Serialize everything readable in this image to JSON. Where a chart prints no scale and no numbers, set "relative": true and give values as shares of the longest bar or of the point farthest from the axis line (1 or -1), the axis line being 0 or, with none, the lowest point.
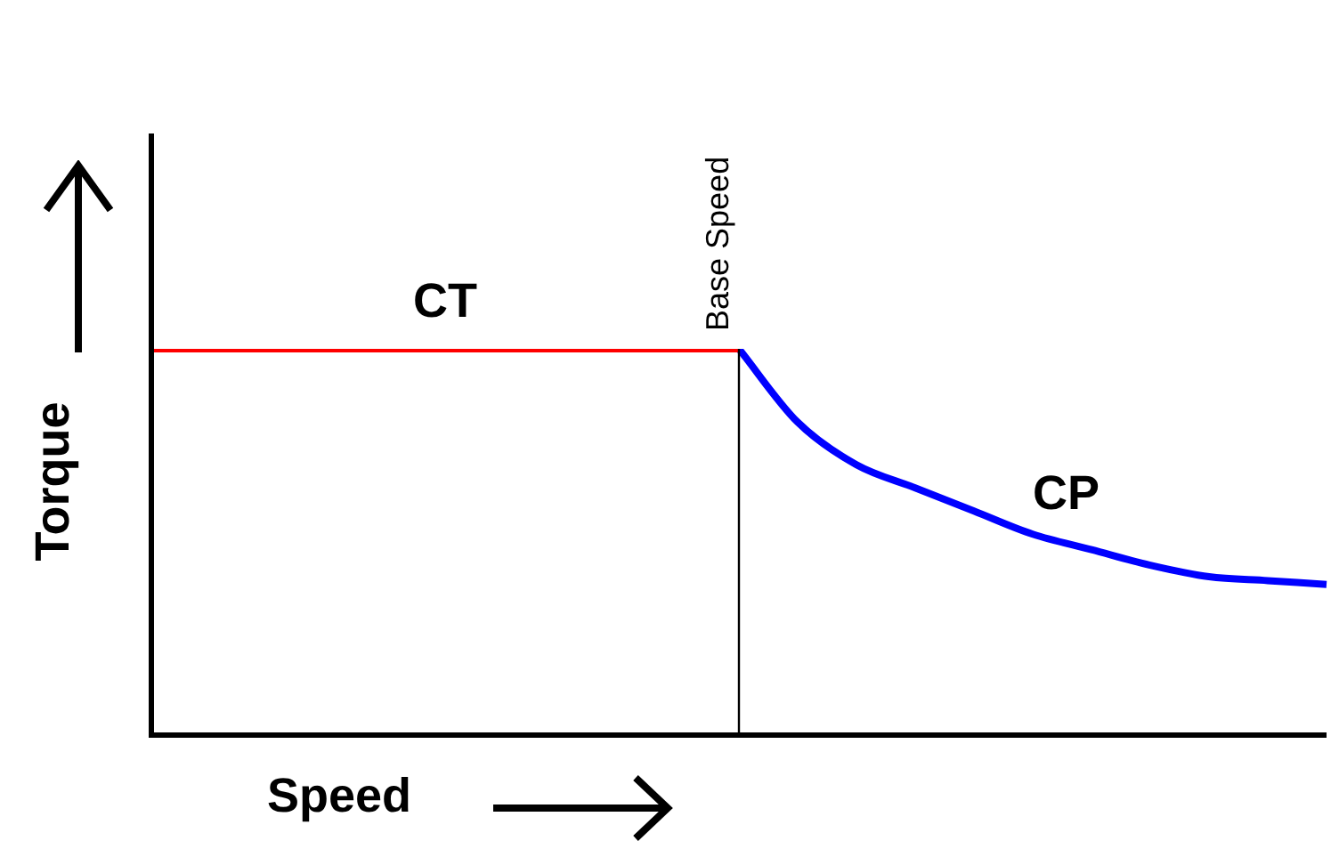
{
  "chart_data": {
    "type": "line",
    "relative": true,
    "xlabel": "Speed",
    "ylabel": "Torque",
    "legend": false,
    "marker": "none",
    "annotations": [
      "Base Speed"
    ],
    "categories": [
      null,
      null,
      null,
      null,
      null,
      null,
      null,
      null,
      null,
      null,
      null,
      null,
      null,
      null,
      null,
      null,
      null,
      null,
      null,
      null,
      null
    ],
    "series": [
      {
        "name": "CT",
        "color": "#ff0000",
        "values": [
          1,
          1,
          1,
          1,
          1,
          1,
          1,
          1,
          1,
          1,
          1,
          null,
          null,
          null,
          null,
          null,
          null,
          null,
          null,
          null,
          null
        ]
      },
      {
        "name": "CP",
        "color": "#0000ff",
        "values": [
          null,
          null,
          null,
          null,
          null,
          null,
          null,
          null,
          null,
          null,
          1,
          0.81,
          0.7,
          0.64,
          0.58,
          0.52,
          0.48,
          0.44,
          0.41,
          0.4,
          0.39
        ]
      }
    ]
  }
}
